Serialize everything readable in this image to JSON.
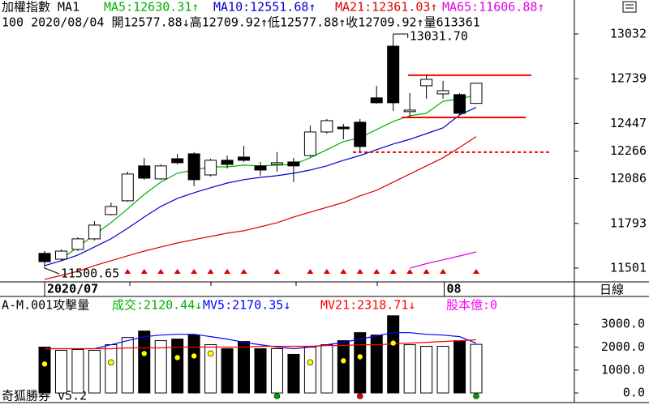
{
  "period": "日線",
  "footer": "奇狐勝券 v5.2",
  "chart_data": [
    {
      "type": "candlestick",
      "title": "加權指數 MA1",
      "subtitle": "100 2020/08/04 開12577.88↓高12709.92↑低12577.88↑收12709.92↑量613361",
      "categories": [
        "2020/07",
        null,
        null,
        null,
        null,
        null,
        null,
        null,
        null,
        null,
        null,
        null,
        null,
        null,
        null,
        null,
        null,
        null,
        null,
        null,
        null,
        null,
        null,
        null,
        null,
        "08",
        null
      ],
      "open": [
        11597,
        11559,
        11623,
        11692,
        11851,
        11941,
        12169,
        12084,
        12216,
        12248,
        12110,
        12206,
        12227,
        12169,
        12179,
        12195,
        12237,
        12391,
        12423,
        12455,
        12614,
        12952,
        12524,
        12693,
        12640,
        12635,
        12577.88
      ],
      "high": [
        11612,
        11623,
        11702,
        11808,
        11930,
        12132,
        12222,
        12179,
        12248,
        12259,
        12216,
        12237,
        12301,
        12195,
        12259,
        12222,
        12433,
        12476,
        12444,
        12476,
        12693,
        13031.7,
        12645,
        12767,
        12725,
        12645,
        12709.92
      ],
      "low": [
        11500.65,
        11549,
        11612,
        11681,
        11846,
        11935,
        12079,
        12079,
        12179,
        12036,
        12100,
        12153,
        12195,
        12105,
        12132,
        12063,
        12227,
        12380,
        12343,
        12259,
        12577,
        12529,
        12486,
        12608,
        12608,
        12502,
        12577.88
      ],
      "close": [
        11543,
        11612,
        11692,
        11782,
        11904,
        12116,
        12089,
        12169,
        12190,
        12079,
        12206,
        12179,
        12206,
        12142,
        12190,
        12169,
        12391,
        12465,
        12412,
        12296,
        12582,
        12582,
        12534,
        12735,
        12661,
        12513,
        12709.92
      ],
      "up_color": "#ffffff",
      "down_color": "#000000",
      "series": [
        {
          "name": "MA5:12630.31↑",
          "color": "#00b000",
          "values": [
            null,
            11559,
            11639,
            11718,
            11798,
            11888,
            11983,
            12063,
            12121,
            12142,
            12163,
            12163,
            12174,
            12169,
            12174,
            12179,
            12222,
            12275,
            12328,
            12354,
            12407,
            12460,
            12497,
            12513,
            12592,
            12608,
            12630.31
          ]
        },
        {
          "name": "MA10:12551.68↑",
          "color": "#0000cc",
          "values": [
            11517,
            11549,
            11586,
            11639,
            11692,
            11761,
            11835,
            11904,
            11957,
            11994,
            12026,
            12057,
            12079,
            12094,
            12105,
            12121,
            12142,
            12169,
            12206,
            12237,
            12275,
            12312,
            12343,
            12380,
            12418,
            12502,
            12551.68
          ]
        },
        {
          "name": "MA21:12361.03↑",
          "color": "#dd0000",
          "values": [
            11427,
            11453,
            11480,
            11517,
            11549,
            11581,
            11612,
            11639,
            11665,
            11687,
            11708,
            11729,
            11745,
            11771,
            11798,
            11835,
            11867,
            11898,
            11930,
            11973,
            12010,
            12063,
            12116,
            12169,
            12222,
            12290,
            12361.03
          ]
        },
        {
          "name": "MA65:11606.88↑",
          "color": "#dd00dd",
          "values": [
            null,
            null,
            null,
            null,
            null,
            null,
            null,
            null,
            null,
            null,
            null,
            null,
            null,
            null,
            null,
            null,
            null,
            null,
            null,
            null,
            null,
            null,
            11500,
            11530,
            11555,
            11580,
            11606.88
          ]
        }
      ],
      "ylim": [
        11416,
        13254
      ],
      "yticks": [
        13032,
        12739,
        12447,
        12266,
        12086,
        11793,
        11501
      ],
      "high_label": {
        "value": 13031.7,
        "label": "13031.70"
      },
      "low_label": {
        "value": 11500.65,
        "label": "11500.65"
      },
      "levels": [
        {
          "value": 12762,
          "dashed": false
        },
        {
          "value": 12486,
          "dashed": false
        },
        {
          "value": 12259,
          "dashed": true
        }
      ],
      "level_color": "#ff0000",
      "signal_color": "#dd0000"
    },
    {
      "type": "volume",
      "title": "A-M.001攻擊量",
      "name": "成交:2120.44↓",
      "name_color": "#00b000",
      "values": [
        2000,
        1860,
        1895,
        1860,
        2105,
        2421,
        2702,
        2281,
        2351,
        2526,
        2105,
        1930,
        2246,
        1930,
        1930,
        1684,
        2000,
        2105,
        2281,
        2632,
        2526,
        3368,
        2105,
        2035,
        2035,
        2281,
        2120.44
      ],
      "series": [
        {
          "name": "MV5:2170.35↓",
          "color": "#0000ff",
          "values": [
            1930,
            1930,
            1930,
            1930,
            2105,
            2281,
            2456,
            2526,
            2561,
            2561,
            2456,
            2351,
            2211,
            2105,
            2000,
            1930,
            2000,
            2105,
            2211,
            2351,
            2491,
            2632,
            2632,
            2561,
            2526,
            2456,
            2170.35
          ]
        },
        {
          "name": "MV21:2318.71↓",
          "color": "#ff0000",
          "values": [
            1930,
            1930,
            1930,
            1930,
            1930,
            1965,
            1965,
            1965,
            2000,
            2000,
            2000,
            2000,
            2000,
            2035,
            2035,
            2035,
            2035,
            2070,
            2070,
            2105,
            2105,
            2140,
            2175,
            2211,
            2246,
            2281,
            2318.71
          ]
        }
      ],
      "extra": {
        "label": "股本億:0",
        "color": "#ff00ff"
      },
      "markers": {
        "color": "#ffff00",
        "values": [
          1263,
          null,
          null,
          null,
          1333,
          null,
          1719,
          null,
          1544,
          1614,
          1719,
          null,
          null,
          null,
          null,
          null,
          1333,
          null,
          1404,
          1579,
          null,
          2175,
          null,
          null,
          null,
          null,
          null
        ]
      },
      "ylim": [
        -421,
        4211
      ],
      "yticks": [
        {
          "value": 3000,
          "label": "3000.0"
        },
        {
          "value": 2000,
          "label": "2000.0"
        },
        {
          "value": 1000,
          "label": "1000.0"
        },
        {
          "value": 0,
          "label": "0.0"
        }
      ]
    }
  ]
}
